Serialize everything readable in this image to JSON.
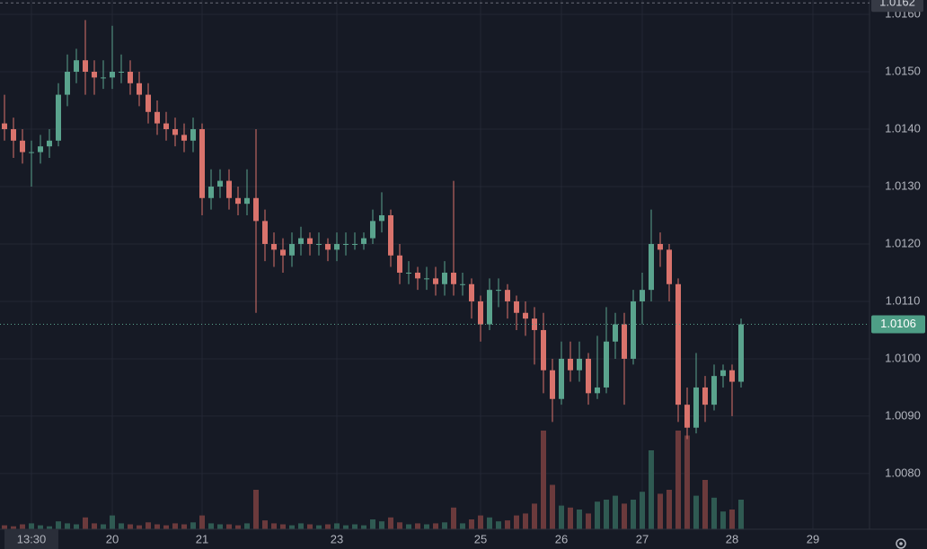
{
  "chart_data": {
    "type": "candlestick",
    "categories": [
      null,
      null,
      null,
      "13:30",
      null,
      null,
      null,
      null,
      null,
      null,
      null,
      null,
      "20",
      null,
      null,
      null,
      null,
      null,
      null,
      null,
      null,
      null,
      "21",
      null,
      null,
      null,
      null,
      null,
      null,
      null,
      null,
      null,
      null,
      null,
      null,
      null,
      null,
      "23",
      null,
      null,
      null,
      null,
      null,
      null,
      null,
      null,
      null,
      null,
      null,
      null,
      null,
      null,
      null,
      "25",
      null,
      null,
      null,
      null,
      null,
      null,
      null,
      null,
      "26",
      null,
      null,
      null,
      null,
      null,
      null,
      null,
      null,
      "27",
      null,
      null,
      null,
      null,
      null,
      null,
      null,
      null,
      null,
      "28",
      null,
      null,
      null,
      null,
      null,
      null,
      null,
      null,
      "29",
      null,
      null,
      null,
      null
    ],
    "ohlc": [
      [
        1.0141,
        1.0146,
        1.0138,
        1.014
      ],
      [
        1.014,
        1.0142,
        1.0135,
        1.0138
      ],
      [
        1.0138,
        1.014,
        1.0134,
        1.0136
      ],
      [
        1.0136,
        1.0138,
        1.013,
        1.0136
      ],
      [
        1.0136,
        1.0139,
        1.0134,
        1.0137
      ],
      [
        1.0137,
        1.014,
        1.0135,
        1.0138
      ],
      [
        1.0138,
        1.0148,
        1.0137,
        1.0146
      ],
      [
        1.0146,
        1.0153,
        1.0144,
        1.015
      ],
      [
        1.015,
        1.0154,
        1.0148,
        1.0152
      ],
      [
        1.0152,
        1.0159,
        1.0146,
        1.015
      ],
      [
        1.015,
        1.0152,
        1.0146,
        1.0149
      ],
      [
        1.0149,
        1.0152,
        1.0147,
        1.0149
      ],
      [
        1.0149,
        1.0158,
        1.0147,
        1.015
      ],
      [
        1.015,
        1.0153,
        1.0148,
        1.015
      ],
      [
        1.015,
        1.0152,
        1.0146,
        1.0148
      ],
      [
        1.0148,
        1.015,
        1.0144,
        1.0146
      ],
      [
        1.0146,
        1.0148,
        1.0141,
        1.0143
      ],
      [
        1.0143,
        1.0145,
        1.0139,
        1.0141
      ],
      [
        1.0141,
        1.0143,
        1.0138,
        1.014
      ],
      [
        1.014,
        1.0142,
        1.0137,
        1.0139
      ],
      [
        1.0139,
        1.0141,
        1.0136,
        1.0138
      ],
      [
        1.0138,
        1.0142,
        1.0136,
        1.014
      ],
      [
        1.014,
        1.0141,
        1.0125,
        1.0128
      ],
      [
        1.0128,
        1.0133,
        1.0126,
        1.013
      ],
      [
        1.013,
        1.0133,
        1.0128,
        1.0131
      ],
      [
        1.0131,
        1.0133,
        1.0126,
        1.0128
      ],
      [
        1.0128,
        1.013,
        1.0125,
        1.0127
      ],
      [
        1.0127,
        1.0133,
        1.0125,
        1.0128
      ],
      [
        1.0128,
        1.014,
        1.0108,
        1.0124
      ],
      [
        1.0124,
        1.0126,
        1.0117,
        1.012
      ],
      [
        1.012,
        1.0122,
        1.0116,
        1.0119
      ],
      [
        1.0119,
        1.0121,
        1.0115,
        1.0118
      ],
      [
        1.0118,
        1.0122,
        1.0116,
        1.012
      ],
      [
        1.012,
        1.0123,
        1.0118,
        1.0121
      ],
      [
        1.0121,
        1.0122,
        1.0118,
        1.012
      ],
      [
        1.012,
        1.0122,
        1.0118,
        1.012
      ],
      [
        1.012,
        1.0121,
        1.0117,
        1.0119
      ],
      [
        1.0119,
        1.0122,
        1.0117,
        1.012
      ],
      [
        1.012,
        1.0122,
        1.0118,
        1.012
      ],
      [
        1.012,
        1.0122,
        1.0119,
        1.012
      ],
      [
        1.012,
        1.0122,
        1.0119,
        1.0121
      ],
      [
        1.0121,
        1.0126,
        1.012,
        1.0124
      ],
      [
        1.0124,
        1.0129,
        1.0122,
        1.0125
      ],
      [
        1.0125,
        1.0126,
        1.0116,
        1.0118
      ],
      [
        1.0118,
        1.012,
        1.0113,
        1.0115
      ],
      [
        1.0115,
        1.0117,
        1.0113,
        1.0115
      ],
      [
        1.0115,
        1.0116,
        1.0112,
        1.0114
      ],
      [
        1.0114,
        1.0116,
        1.0112,
        1.0114
      ],
      [
        1.0114,
        1.0116,
        1.0111,
        1.0113
      ],
      [
        1.0113,
        1.0117,
        1.0111,
        1.0115
      ],
      [
        1.0115,
        1.0131,
        1.0111,
        1.0113
      ],
      [
        1.0113,
        1.0115,
        1.0111,
        1.0113
      ],
      [
        1.0113,
        1.0114,
        1.0107,
        1.011
      ],
      [
        1.011,
        1.0111,
        1.0103,
        1.0106
      ],
      [
        1.0106,
        1.0114,
        1.0105,
        1.0112
      ],
      [
        1.0112,
        1.0114,
        1.0109,
        1.0112
      ],
      [
        1.0112,
        1.0113,
        1.0107,
        1.011
      ],
      [
        1.011,
        1.0111,
        1.0105,
        1.0108
      ],
      [
        1.0108,
        1.011,
        1.0104,
        1.0107
      ],
      [
        1.0107,
        1.0109,
        1.0099,
        1.0105
      ],
      [
        1.0105,
        1.0108,
        1.0094,
        1.0098
      ],
      [
        1.0098,
        1.01,
        1.0089,
        1.0093
      ],
      [
        1.0093,
        1.0103,
        1.0092,
        1.01
      ],
      [
        1.01,
        1.0103,
        1.0096,
        1.0098
      ],
      [
        1.0098,
        1.0103,
        1.0096,
        1.01
      ],
      [
        1.01,
        1.0101,
        1.0092,
        1.0094
      ],
      [
        1.0094,
        1.0104,
        1.0093,
        1.0095
      ],
      [
        1.0095,
        1.0109,
        1.0094,
        1.0103
      ],
      [
        1.0103,
        1.0108,
        1.01,
        1.0106
      ],
      [
        1.0106,
        1.0108,
        1.0092,
        1.01
      ],
      [
        1.01,
        1.0112,
        1.0099,
        1.011
      ],
      [
        1.011,
        1.0115,
        1.0106,
        1.0112
      ],
      [
        1.0112,
        1.0126,
        1.011,
        1.012
      ],
      [
        1.012,
        1.0122,
        1.0116,
        1.0119
      ],
      [
        1.0119,
        1.012,
        1.011,
        1.0113
      ],
      [
        1.0113,
        1.0114,
        1.0089,
        1.0092
      ],
      [
        1.0092,
        1.0095,
        1.0086,
        1.0088
      ],
      [
        1.0088,
        1.0101,
        1.0087,
        1.0095
      ],
      [
        1.0095,
        1.0097,
        1.0089,
        1.0092
      ],
      [
        1.0092,
        1.0099,
        1.0091,
        1.0097
      ],
      [
        1.0097,
        1.0099,
        1.0095,
        1.0098
      ],
      [
        1.0098,
        1.0099,
        1.009,
        1.0096
      ],
      [
        1.0096,
        1.0107,
        1.0095,
        1.0106
      ],
      null,
      null,
      null,
      null,
      null,
      null,
      null,
      null,
      null,
      null,
      null,
      null
    ],
    "volume": [
      4,
      3,
      5,
      6,
      4,
      3,
      8,
      6,
      5,
      12,
      6,
      5,
      14,
      6,
      5,
      4,
      7,
      5,
      4,
      6,
      5,
      7,
      14,
      6,
      5,
      5,
      4,
      6,
      40,
      9,
      6,
      5,
      4,
      6,
      5,
      4,
      5,
      6,
      4,
      5,
      4,
      10,
      8,
      12,
      7,
      5,
      6,
      5,
      6,
      7,
      22,
      6,
      10,
      14,
      12,
      8,
      9,
      14,
      16,
      26,
      100,
      45,
      24,
      22,
      20,
      16,
      28,
      30,
      34,
      26,
      30,
      38,
      80,
      36,
      40,
      100,
      95,
      34,
      50,
      32,
      18,
      20,
      30,
      null,
      null,
      null,
      null,
      null,
      null,
      null,
      null,
      null,
      null,
      null,
      null
    ],
    "up_color": "#5aa38d",
    "down_color": "#d9736c",
    "volume_up_color": "#2f5a52",
    "volume_down_color": "#6b3a3c",
    "ylim": [
      1.00703,
      1.01625
    ],
    "yticks": [
      {
        "value": 1.008,
        "label": "1.0080"
      },
      {
        "value": 1.009,
        "label": "1.0090"
      },
      {
        "value": 1.01,
        "label": "1.0100"
      },
      {
        "value": 1.011,
        "label": "1.0110"
      },
      {
        "value": 1.012,
        "label": "1.0120"
      },
      {
        "value": 1.013,
        "label": "1.0130"
      },
      {
        "value": 1.014,
        "label": "1.0140"
      },
      {
        "value": 1.015,
        "label": "1.0150"
      },
      {
        "value": 1.016,
        "label": "1.0160"
      }
    ],
    "last_price": {
      "value": 1.0106,
      "label": "1.0106"
    },
    "top_price": {
      "value": 1.0162,
      "label": "1.0162"
    },
    "grid": true
  }
}
